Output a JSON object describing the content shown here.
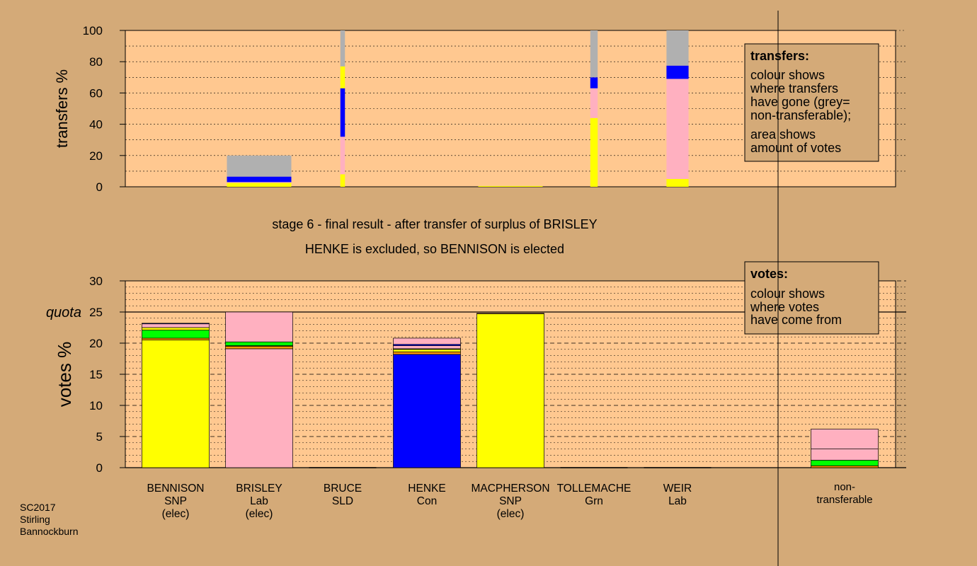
{
  "colors": {
    "background": "#d4aa78",
    "plot_bg": "#ffc890",
    "SNP": "#ffff00",
    "Lab": "#ffb0c0",
    "Con": "#0000ff",
    "Grn": "#00ff00",
    "SLD": "#ff9900",
    "nontransferable": "#b0b0b0"
  },
  "chart_data": [
    {
      "type": "bar",
      "stacked": true,
      "ylabel": "transfers %",
      "ylim": [
        0,
        100
      ],
      "yticks": [
        0,
        20,
        40,
        60,
        80,
        100
      ],
      "grid": true,
      "note": "bar width shows amount of votes transferred",
      "legend": {
        "title": "transfers:",
        "lines": [
          "colour shows",
          "where transfers",
          "have gone (grey=",
          "non-transferable);",
          "area shows",
          "amount of votes"
        ],
        "placement": "top-right"
      },
      "columns": [
        {
          "candidate": "BRISLEY",
          "width": 3.5,
          "segments": [
            {
              "party": "SNP",
              "value": 2.5
            },
            {
              "party": "Lab",
              "value": 0.5
            },
            {
              "party": "Con",
              "value": 3.5
            },
            {
              "party": "nontransferable",
              "value": 13.5
            }
          ]
        },
        {
          "candidate": "BRUCE",
          "width": 0.25,
          "segments": [
            {
              "party": "SNP",
              "value": 8
            },
            {
              "party": "Lab",
              "value": 24
            },
            {
              "party": "Con",
              "value": 31
            },
            {
              "party": "SNP",
              "value": 14
            },
            {
              "party": "nontransferable",
              "value": 23
            }
          ]
        },
        {
          "candidate": "MACPHERSON",
          "width": 3.5,
          "segments": [
            {
              "party": "SNP",
              "value": 0.5
            }
          ]
        },
        {
          "candidate": "TOLLEMACHE",
          "width": 0.4,
          "segments": [
            {
              "party": "SNP",
              "value": 44
            },
            {
              "party": "Lab",
              "value": 19
            },
            {
              "party": "Con",
              "value": 7
            },
            {
              "party": "nontransferable",
              "value": 30
            }
          ]
        },
        {
          "candidate": "WEIR",
          "width": 1.2,
          "segments": [
            {
              "party": "SNP",
              "value": 5
            },
            {
              "party": "Lab",
              "value": 64
            },
            {
              "party": "Con",
              "value": 8.5
            },
            {
              "party": "nontransferable",
              "value": 22.5
            }
          ]
        }
      ]
    },
    {
      "type": "bar",
      "stacked": true,
      "ylabel": "votes %",
      "ylim": [
        0,
        30
      ],
      "yticks": [
        0,
        5,
        10,
        15,
        20,
        25,
        30
      ],
      "quota": 25,
      "quota_label": "quota",
      "grid": true,
      "legend": {
        "title": "votes:",
        "lines": [
          "colour shows",
          "where votes",
          "have come from"
        ],
        "placement": "top-right"
      },
      "categories": [
        {
          "lines": [
            "BENNISON",
            "SNP",
            "(elec)"
          ]
        },
        {
          "lines": [
            "BRISLEY",
            "Lab",
            "(elec)"
          ]
        },
        {
          "lines": [
            "BRUCE",
            "SLD"
          ]
        },
        {
          "lines": [
            "HENKE",
            "Con"
          ]
        },
        {
          "lines": [
            "MACPHERSON",
            "SNP",
            "(elec)"
          ]
        },
        {
          "lines": [
            "TOLLEMACHE",
            "Grn"
          ]
        },
        {
          "lines": [
            "WEIR",
            "Lab"
          ]
        },
        {
          "lines": [
            "non-",
            "transferable"
          ],
          "separate": true
        }
      ],
      "stacks": [
        [
          {
            "party": "SNP",
            "value": 20.5
          },
          {
            "party": "SLD",
            "value": 0.3
          },
          {
            "party": "Grn",
            "value": 1.3
          },
          {
            "party": "SNP",
            "value": 0.4
          },
          {
            "party": "Lab",
            "value": 0.6
          },
          {
            "party": "Con",
            "value": 0.1
          }
        ],
        [
          {
            "party": "Lab",
            "value": 19.1
          },
          {
            "party": "SLD",
            "value": 0.4
          },
          {
            "party": "SNP",
            "value": 0.1
          },
          {
            "party": "Grn",
            "value": 0.6
          },
          {
            "party": "Lab",
            "value": 4.8
          }
        ],
        [],
        [
          {
            "party": "Con",
            "value": 18.2
          },
          {
            "party": "SLD",
            "value": 0.4
          },
          {
            "party": "SNP",
            "value": 0.4
          },
          {
            "party": "Grn",
            "value": 0.1
          },
          {
            "party": "Lab",
            "value": 0.5
          },
          {
            "party": "Con",
            "value": 0.2
          },
          {
            "party": "Lab",
            "value": 1.0
          }
        ],
        [
          {
            "party": "SNP",
            "value": 24.7
          },
          {
            "party": "SLD",
            "value": 0.1
          }
        ],
        [],
        [],
        [
          {
            "party": "SLD",
            "value": 0.3
          },
          {
            "party": "Grn",
            "value": 0.9
          },
          {
            "party": "Lab",
            "value": 1.8
          },
          {
            "party": "Lab",
            "value": 3.2
          }
        ]
      ]
    }
  ],
  "stage_title": "stage 6 - final result - after transfer of surplus of BRISLEY",
  "stage_subtitle": "HENKE is excluded, so BENNISON is elected",
  "footer": [
    "SC2017",
    "Stirling",
    "Bannockburn"
  ]
}
